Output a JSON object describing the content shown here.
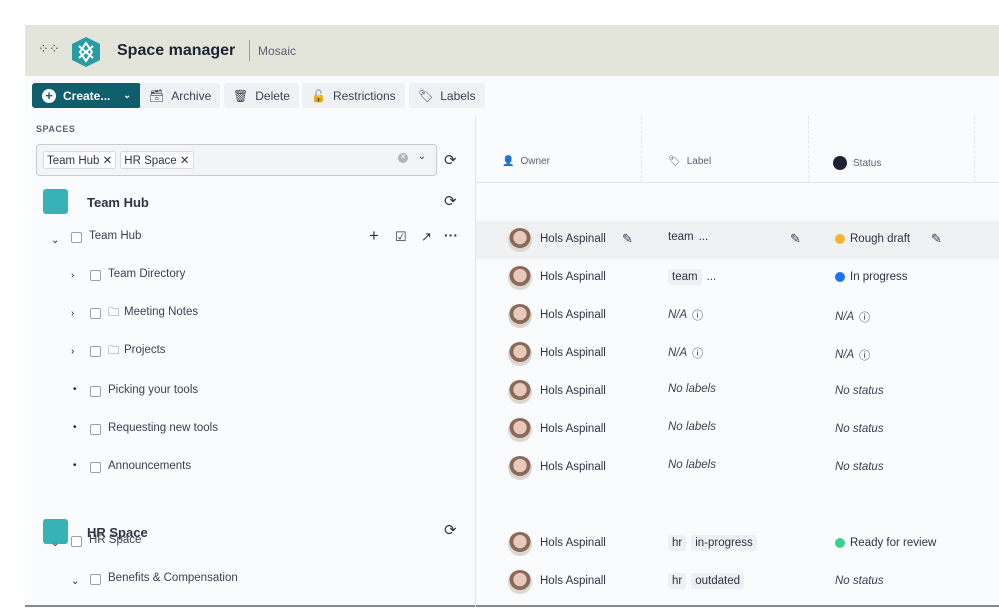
{
  "header": {
    "title": "Space manager",
    "subtitle": "Mosaic",
    "grid_icon": "apps-grid-icon",
    "logo_icon": "hexagon-logo-icon"
  },
  "toolbar": {
    "create": "Create...",
    "archive": "Archive",
    "delete": "Delete",
    "restrictions": "Restrictions",
    "labels": "Labels"
  },
  "spaces": {
    "label": "SPACES",
    "selected": [
      "Team Hub",
      "HR Space"
    ]
  },
  "tree": {
    "team_hub": {
      "title": "Team Hub",
      "items": [
        {
          "label": "Team Hub",
          "type": "expanded"
        },
        {
          "label": "Team Directory",
          "type": "collapsed"
        },
        {
          "label": "Meeting Notes",
          "type": "collapsed-folder"
        },
        {
          "label": "Projects",
          "type": "collapsed-folder"
        },
        {
          "label": "Picking your tools",
          "type": "leaf"
        },
        {
          "label": "Requesting new tools",
          "type": "leaf"
        },
        {
          "label": "Announcements",
          "type": "leaf"
        }
      ]
    },
    "hr_space": {
      "title": "HR Space",
      "items": [
        {
          "label": "HR Space",
          "type": "expanded"
        },
        {
          "label": "Benefits & Compensation",
          "type": "expanded"
        }
      ]
    }
  },
  "columns": {
    "owner": "Owner",
    "label": "Label",
    "status": "Status"
  },
  "rows": [
    {
      "owner": "Hols Aspinall",
      "labels": [
        "team"
      ],
      "more": "...",
      "status": "Rough draft",
      "status_color": "#f5b52e"
    },
    {
      "owner": "Hols Aspinall",
      "labels": [
        "team"
      ],
      "more": "...",
      "status": "In progress",
      "status_color": "#1f6ff0"
    },
    {
      "owner": "Hols Aspinall",
      "labels_text": "N/A",
      "status_text": "N/A"
    },
    {
      "owner": "Hols Aspinall",
      "labels_text": "N/A",
      "status_text": "N/A"
    },
    {
      "owner": "Hols Aspinall",
      "labels_text": "No labels",
      "status_text": "No status"
    },
    {
      "owner": "Hols Aspinall",
      "labels_text": "No labels",
      "status_text": "No status"
    },
    {
      "owner": "Hols Aspinall",
      "labels_text": "No labels",
      "status_text": "No status"
    },
    {
      "owner": "Hols Aspinall",
      "labels": [
        "hr",
        "in-progress"
      ],
      "status": "Ready for review",
      "status_color": "#3ccf8e"
    },
    {
      "owner": "Hols Aspinall",
      "labels": [
        "hr",
        "outdated"
      ],
      "status_text": "No status"
    }
  ],
  "colors": {
    "header_bg": "#e3e5da",
    "primary": "#0e5f6b"
  }
}
